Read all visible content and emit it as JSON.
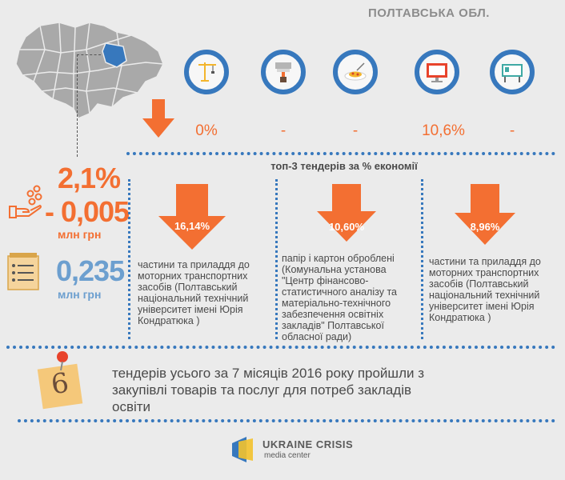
{
  "header": {
    "region": "ПОЛТАВСЬКА ОБЛ."
  },
  "categories": [
    {
      "icon": "crane-icon",
      "value": "0%"
    },
    {
      "icon": "paint-roller-icon",
      "value": "-"
    },
    {
      "icon": "food-plate-icon",
      "value": "-"
    },
    {
      "icon": "computer-monitor-icon",
      "value": "10,6%"
    },
    {
      "icon": "whiteboard-icon",
      "value": "-"
    }
  ],
  "top3": {
    "title": "топ-3 тендерів за % економії",
    "items": [
      {
        "pct": "16,14%",
        "text": "частини та приладдя до моторних транспортних засобів (Полтавський національний технічний університет імені Юрія Кондратюка )"
      },
      {
        "pct": "10,60%",
        "text": "папір і картон оброблені (Комунальна установа \"Центр фінансово-статистичного аналізу та матеріально-технічного забезпечення освітніх закладів\" Полтавської обласної ради)"
      },
      {
        "pct": "8,96%",
        "text": "частини та приладдя до моторних транспортних засобів (Полтавський національний технічний університет імені Юрія Кондратюка )"
      }
    ]
  },
  "savings": {
    "percent": "2,1%",
    "amount": "- 0,005",
    "amount_unit": "млн грн",
    "total": "0,235",
    "total_unit": "млн грн"
  },
  "bottom": {
    "count": "6",
    "text": "тендерів усього за 7 місяців 2016 року пройшли з закупівлі товарів та послуг для потреб закладів освіти"
  },
  "logo": {
    "line1": "UKRAINE CRISIS",
    "line2": "media center"
  },
  "colors": {
    "blue": "#3778bd",
    "orange": "#f36f32",
    "light_blue": "#6c9fcf"
  }
}
